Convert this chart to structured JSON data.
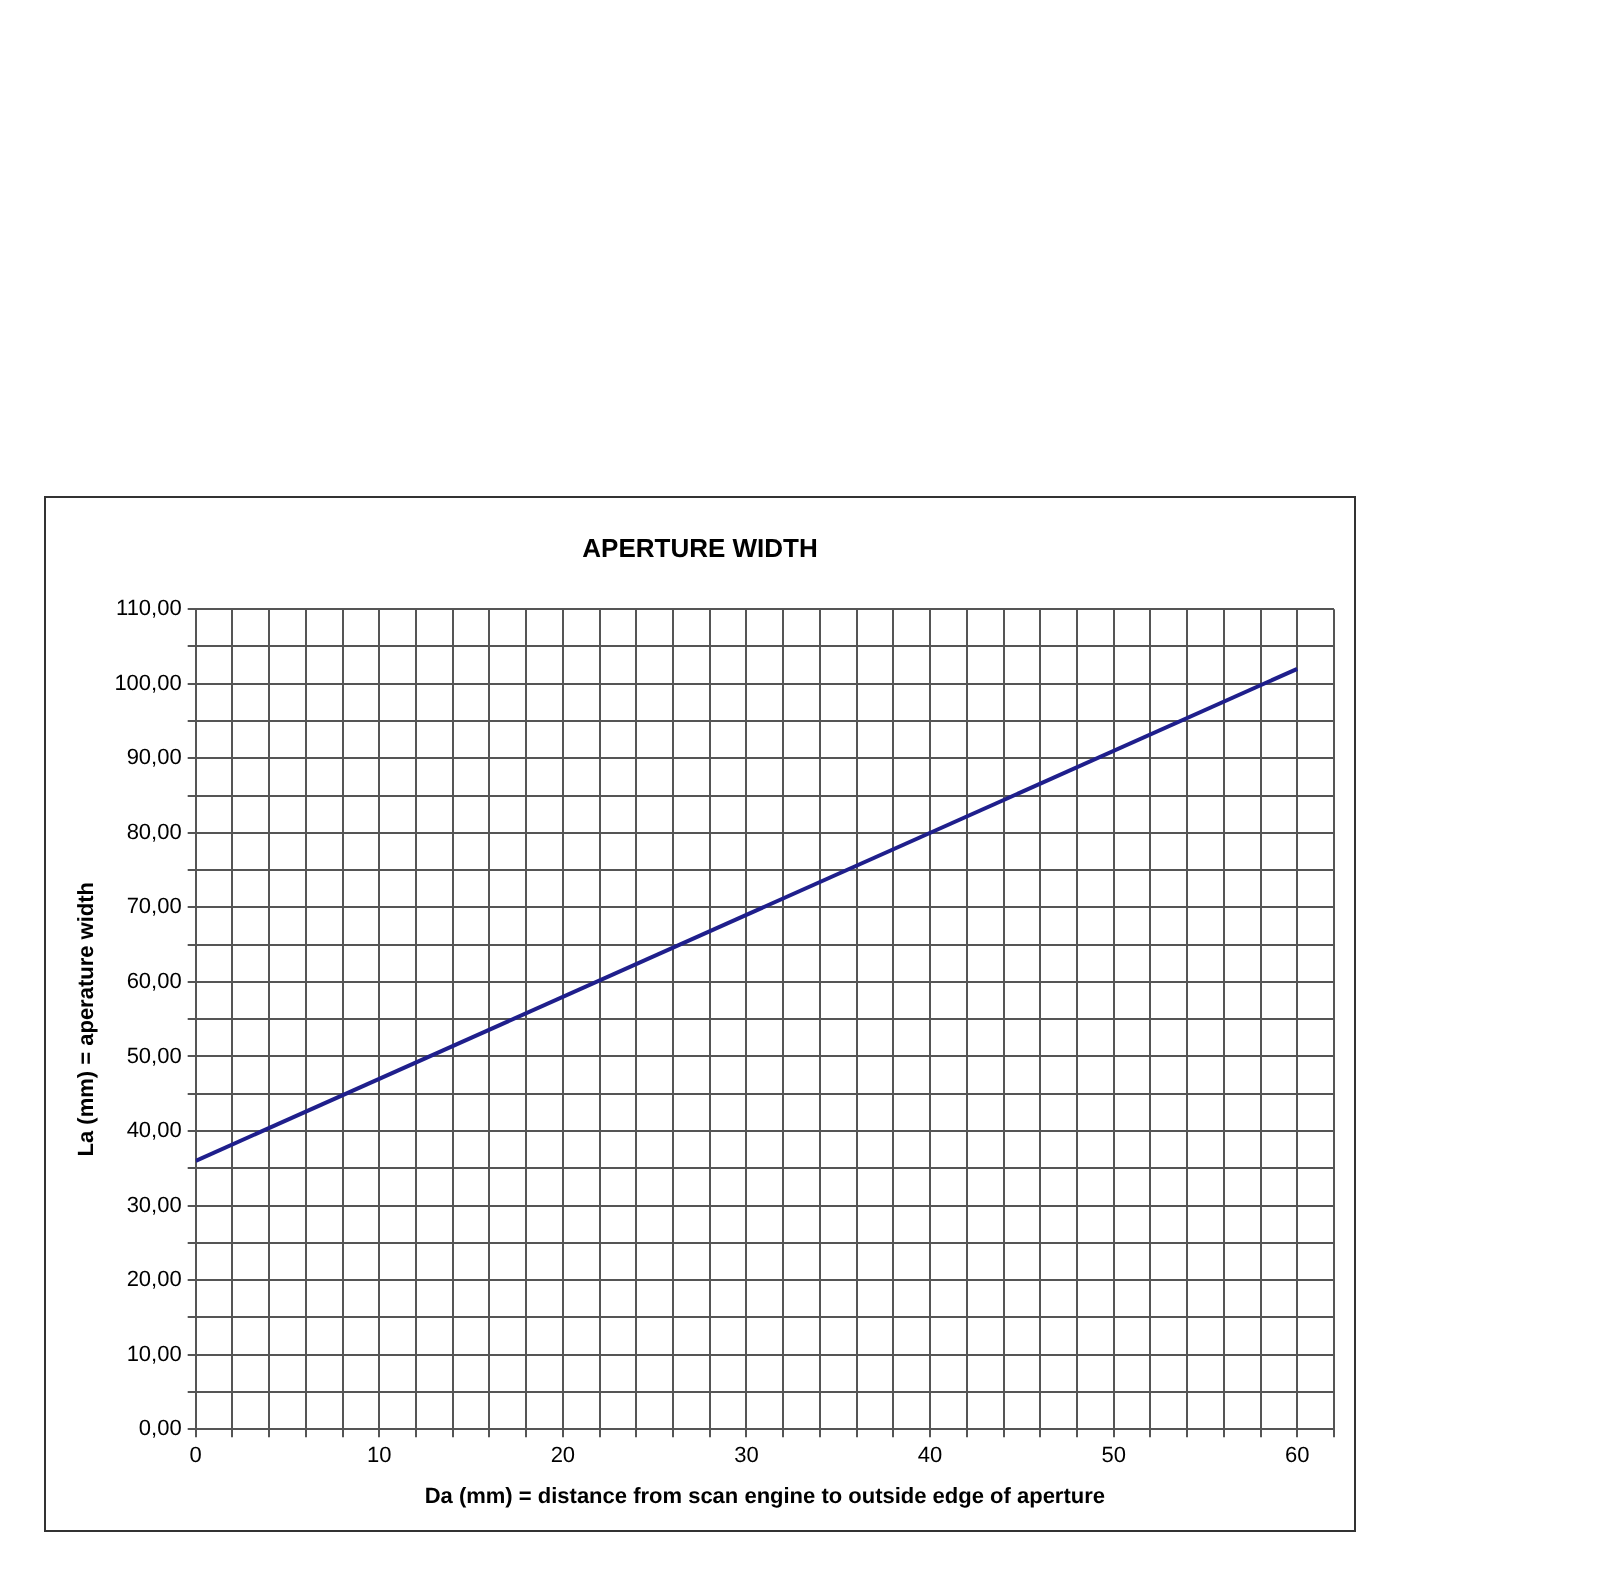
{
  "chart_data": {
    "type": "line",
    "title": "APERTURE WIDTH",
    "xlabel": "Da (mm) = distance from scan engine to outside edge of aperture",
    "ylabel": "La (mm) = aperature width",
    "x": [
      0,
      60
    ],
    "series": [
      {
        "color": "#1f1f8c",
        "values": [
          36,
          102
        ]
      }
    ],
    "xlim": [
      0,
      62
    ],
    "xticks": [
      0,
      {
        "value": 2,
        "label": null
      },
      {
        "value": 4,
        "label": null
      },
      {
        "value": 6,
        "label": null
      },
      {
        "value": 8,
        "label": null
      },
      10,
      {
        "value": 12,
        "label": null
      },
      {
        "value": 14,
        "label": null
      },
      {
        "value": 16,
        "label": null
      },
      {
        "value": 18,
        "label": null
      },
      20,
      {
        "value": 22,
        "label": null
      },
      {
        "value": 24,
        "label": null
      },
      {
        "value": 26,
        "label": null
      },
      {
        "value": 28,
        "label": null
      },
      30,
      {
        "value": 32,
        "label": null
      },
      {
        "value": 34,
        "label": null
      },
      {
        "value": 36,
        "label": null
      },
      {
        "value": 38,
        "label": null
      },
      40,
      {
        "value": 42,
        "label": null
      },
      {
        "value": 44,
        "label": null
      },
      {
        "value": 46,
        "label": null
      },
      {
        "value": 48,
        "label": null
      },
      50,
      {
        "value": 52,
        "label": null
      },
      {
        "value": 54,
        "label": null
      },
      {
        "value": 56,
        "label": null
      },
      {
        "value": 58,
        "label": null
      },
      60,
      {
        "value": 62,
        "label": null
      }
    ],
    "ylim": [
      0,
      110
    ],
    "yticks": [
      {
        "value": 0,
        "label": "0,00"
      },
      {
        "value": 5,
        "label": null
      },
      {
        "value": 10,
        "label": "10,00"
      },
      {
        "value": 15,
        "label": null
      },
      {
        "value": 20,
        "label": "20,00"
      },
      {
        "value": 25,
        "label": null
      },
      {
        "value": 30,
        "label": "30,00"
      },
      {
        "value": 35,
        "label": null
      },
      {
        "value": 40,
        "label": "40,00"
      },
      {
        "value": 45,
        "label": null
      },
      {
        "value": 50,
        "label": "50,00"
      },
      {
        "value": 55,
        "label": null
      },
      {
        "value": 60,
        "label": "60,00"
      },
      {
        "value": 65,
        "label": null
      },
      {
        "value": 70,
        "label": "70,00"
      },
      {
        "value": 75,
        "label": null
      },
      {
        "value": 80,
        "label": "80,00"
      },
      {
        "value": 85,
        "label": null
      },
      {
        "value": 90,
        "label": "90,00"
      },
      {
        "value": 95,
        "label": null
      },
      {
        "value": 100,
        "label": "100,00"
      },
      {
        "value": 105,
        "label": null
      },
      {
        "value": 110,
        "label": "110,00"
      }
    ],
    "grid": true,
    "legend": false,
    "marker": "none",
    "line_style": "solid"
  }
}
